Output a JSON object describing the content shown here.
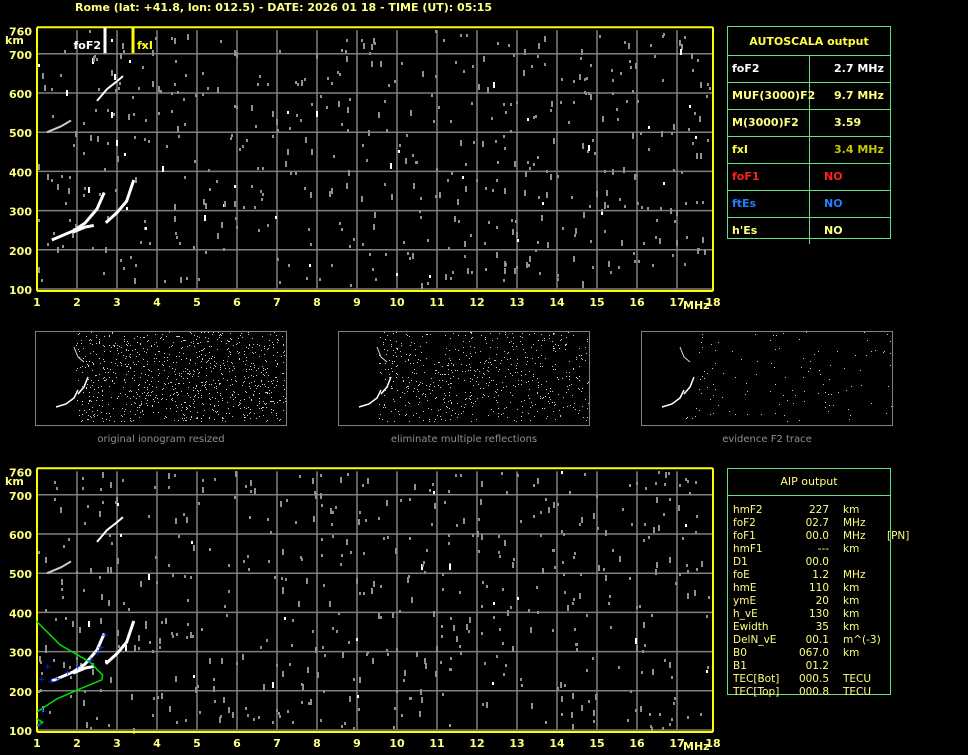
{
  "header": {
    "title": "Rome (lat: +41.8, lon: 012.5) - DATE: 2026 01 18 - TIME (UT): 05:15"
  },
  "plot": {
    "x_ticks": [
      "1",
      "2",
      "3",
      "4",
      "5",
      "6",
      "7",
      "8",
      "9",
      "10",
      "11",
      "12",
      "13",
      "14",
      "15",
      "16",
      "17",
      "18"
    ],
    "x_unit": "MHz",
    "y_ticks": [
      "760",
      "700",
      "600",
      "500",
      "400",
      "300",
      "200",
      "100"
    ],
    "y_unit": "km",
    "markers": {
      "foF2": {
        "label": "foF2",
        "freq": 2.7,
        "color": "#ffffff"
      },
      "fxI": {
        "label": "fxI",
        "freq": 3.4,
        "color": "#ffff00"
      }
    }
  },
  "autoscala": {
    "title": "AUTOSCALA output",
    "rows": [
      {
        "key": "foF2",
        "value": "2.7 MHz",
        "color": "#ffffff",
        "vcolor": "#ffffff"
      },
      {
        "key": "MUF(3000)F2",
        "value": "9.7 MHz",
        "color": "#ffff80",
        "vcolor": "#ffff80"
      },
      {
        "key": "M(3000)F2",
        "value": "3.59",
        "color": "#ffff80",
        "vcolor": "#ffff80"
      },
      {
        "key": "fxI",
        "value": "3.4 MHz",
        "color": "#ffff40",
        "vcolor": "#c8c800"
      },
      {
        "key": "foF1",
        "value": "NO",
        "color": "#ff2020",
        "vcolor": "#ff2020"
      },
      {
        "key": "ftEs",
        "value": "NO",
        "color": "#2080ff",
        "vcolor": "#2080ff"
      },
      {
        "key": "h'Es",
        "value": "NO",
        "color": "#ffff80",
        "vcolor": "#ffff80"
      }
    ]
  },
  "thumbnails": [
    {
      "label": "original ionogram resized"
    },
    {
      "label": "eliminate multiple reflections"
    },
    {
      "label": "evidence F2 trace"
    }
  ],
  "aip": {
    "title": "AIP output",
    "rows": [
      [
        "hmF2",
        "227",
        "km",
        ""
      ],
      [
        "foF2",
        "02.7",
        "MHz",
        ""
      ],
      [
        "foF1",
        "00.0",
        "MHz",
        "[PN]"
      ],
      [
        "hmF1",
        "---",
        "km",
        ""
      ],
      [
        "D1",
        "00.0",
        "",
        ""
      ],
      [
        "foE",
        "1.2",
        "MHz",
        ""
      ],
      [
        "hmE",
        "110",
        "km",
        ""
      ],
      [
        "ymE",
        "20",
        "km",
        ""
      ],
      [
        "h_vE",
        "130",
        "km",
        ""
      ],
      [
        "Ewidth",
        "35",
        "km",
        ""
      ],
      [
        "DelN_vE",
        "00.1",
        "m^(-3)",
        ""
      ],
      [
        "B0",
        "067.0",
        "km",
        ""
      ],
      [
        "B1",
        "01.2",
        "",
        ""
      ],
      [
        "TEC[Bot]",
        "000.5",
        "TECU",
        ""
      ],
      [
        "TEC[Top]",
        "000.8",
        "TECU",
        ""
      ]
    ]
  },
  "colors": {
    "axis": "#ffff00",
    "grid": "#808080",
    "table_border": "#60e080",
    "profile": "#00e000",
    "trace_points": "#0000ff"
  }
}
